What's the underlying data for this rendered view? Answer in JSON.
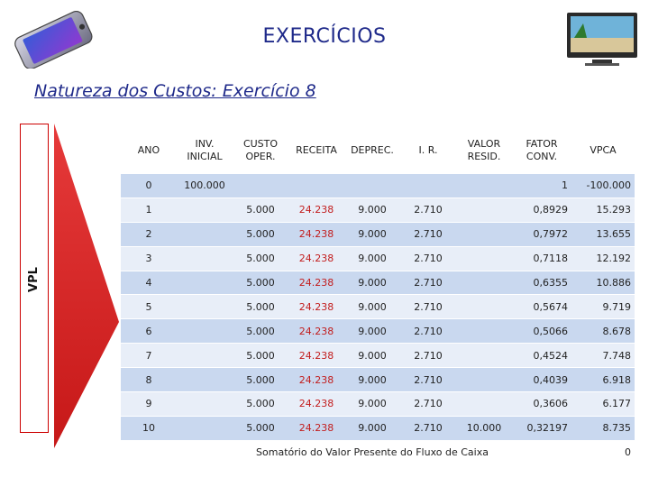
{
  "title": "EXERCÍCIOS",
  "subtitle": "Natureza dos Custos: Exercício 8",
  "side_label": "VPL",
  "table": {
    "headers": [
      "ANO",
      "INV.\nINICIAL",
      "CUSTO\nOPER.",
      "RECEITA",
      "DEPREC.",
      "I. R.",
      "VALOR\nRESID.",
      "FATOR\nCONV.",
      "VPCA"
    ],
    "rows": [
      [
        "0",
        "100.000",
        "",
        "",
        "",
        "",
        "",
        "1",
        "-100.000"
      ],
      [
        "1",
        "",
        "5.000",
        "24.238",
        "9.000",
        "2.710",
        "",
        "0,8929",
        "15.293"
      ],
      [
        "2",
        "",
        "5.000",
        "24.238",
        "9.000",
        "2.710",
        "",
        "0,7972",
        "13.655"
      ],
      [
        "3",
        "",
        "5.000",
        "24.238",
        "9.000",
        "2.710",
        "",
        "0,7118",
        "12.192"
      ],
      [
        "4",
        "",
        "5.000",
        "24.238",
        "9.000",
        "2.710",
        "",
        "0,6355",
        "10.886"
      ],
      [
        "5",
        "",
        "5.000",
        "24.238",
        "9.000",
        "2.710",
        "",
        "0,5674",
        "9.719"
      ],
      [
        "6",
        "",
        "5.000",
        "24.238",
        "9.000",
        "2.710",
        "",
        "0,5066",
        "8.678"
      ],
      [
        "7",
        "",
        "5.000",
        "24.238",
        "9.000",
        "2.710",
        "",
        "0,4524",
        "7.748"
      ],
      [
        "8",
        "",
        "5.000",
        "24.238",
        "9.000",
        "2.710",
        "",
        "0,4039",
        "6.918"
      ],
      [
        "9",
        "",
        "5.000",
        "24.238",
        "9.000",
        "2.710",
        "",
        "0,3606",
        "6.177"
      ],
      [
        "10",
        "",
        "5.000",
        "24.238",
        "9.000",
        "2.710",
        "10.000",
        "0,32197",
        "8.735"
      ]
    ],
    "footer_label": "Somatório do Valor Presente do Fluxo de Caixa",
    "footer_value": "0"
  },
  "colors": {
    "title": "#1f2a8a",
    "band_blue": "#c9d8ef",
    "band_pale": "#e8eef8",
    "receita_red": "#c21d1d",
    "arrow_red": "#d42020"
  },
  "icons": {
    "left": "smartphone-icon",
    "right": "tv-icon"
  }
}
